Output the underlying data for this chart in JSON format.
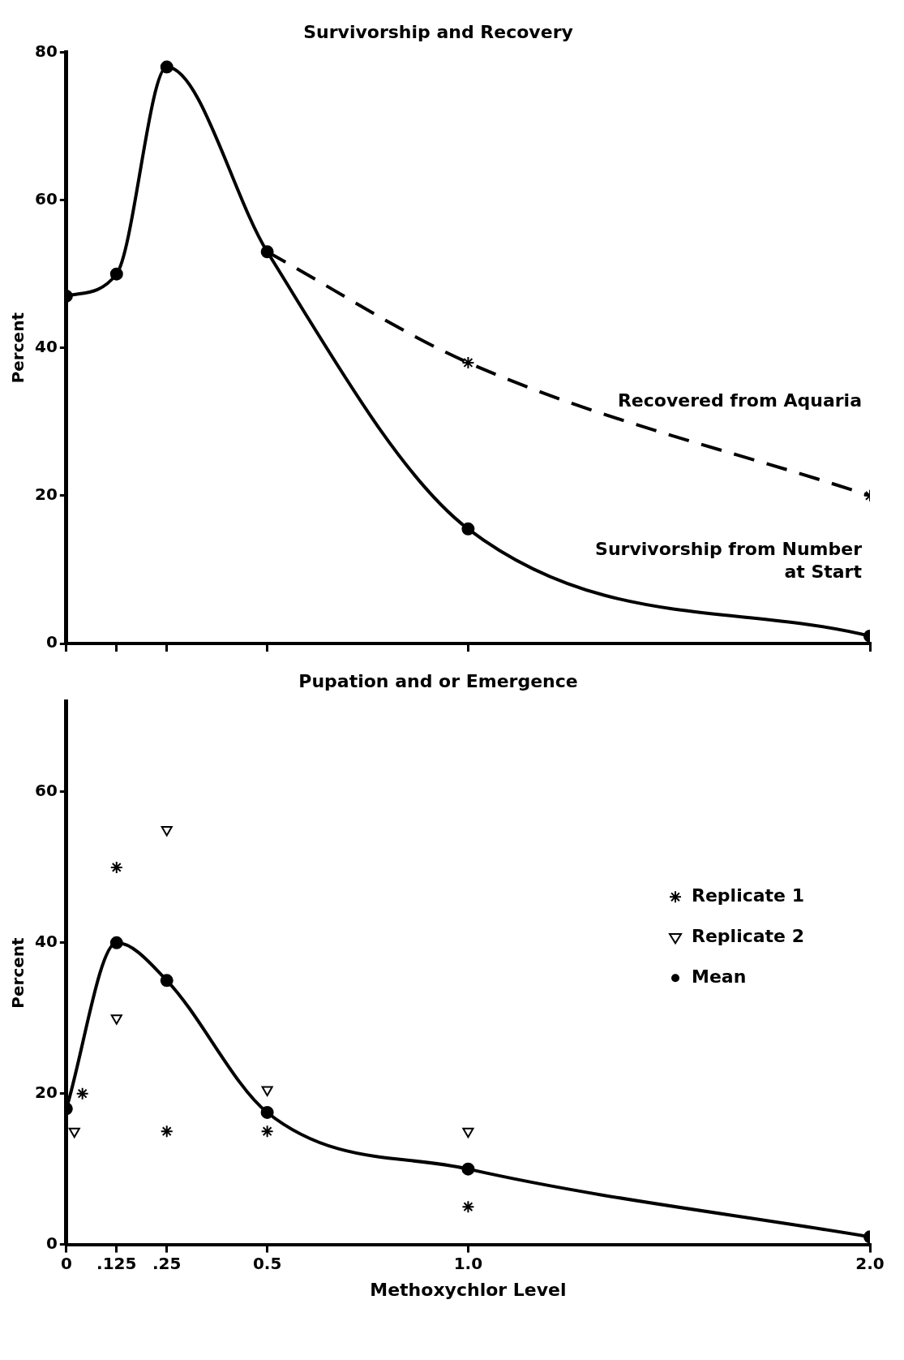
{
  "chart_data": [
    {
      "type": "line",
      "title": "Survivorship and Recovery",
      "ylabel": "Percent",
      "xlim": [
        0,
        2.0
      ],
      "xticks": [
        {
          "value": 0,
          "label": null
        },
        {
          "value": 0.125,
          "label": null
        },
        {
          "value": 0.25,
          "label": null
        },
        {
          "value": 0.5,
          "label": null
        },
        {
          "value": 1.0,
          "label": null
        },
        {
          "value": 2.0,
          "label": null
        }
      ],
      "ylim": [
        0,
        80
      ],
      "yticks": [
        0,
        20,
        40,
        60,
        80
      ],
      "grid": false,
      "legend": false,
      "tick_labels": "y",
      "series": [
        {
          "name": "Survivorship from Number at Start",
          "color": "#000000",
          "marker": "circle",
          "line_style": "solid",
          "x": [
            0,
            0.125,
            0.25,
            0.5,
            1.0,
            2.0
          ],
          "values": [
            47,
            50,
            78,
            53,
            15.5,
            1
          ]
        },
        {
          "name": "Recovered from Aquaria",
          "color": "#000000",
          "marker": "cross",
          "line_style": "dashed",
          "x": [
            0.5,
            1.0,
            2.0
          ],
          "values": [
            53,
            38,
            20
          ]
        }
      ]
    },
    {
      "type": "line",
      "title": "Pupation and or Emergence",
      "xlabel": "Methoxychlor Level",
      "ylabel": "Percent",
      "xlim": [
        0,
        2.0
      ],
      "xticks": [
        0,
        {
          "value": 0.125,
          "label": ".125"
        },
        {
          "value": 0.25,
          "label": ".25"
        },
        0.5,
        {
          "value": 1.0,
          "label": "1.0"
        },
        {
          "value": 2.0,
          "label": "2.0"
        }
      ],
      "ylim": [
        0,
        72
      ],
      "yticks": [
        0,
        20,
        40,
        60
      ],
      "grid": false,
      "legend": "right",
      "series": [
        {
          "name": "Replicate 1",
          "color": "#000000",
          "type": "scatter",
          "marker": "cross",
          "x": [
            0.04,
            0.125,
            0.25,
            0.5,
            1.0
          ],
          "values": [
            20,
            50,
            15,
            15,
            5
          ]
        },
        {
          "name": "Replicate 2",
          "color": "#000000",
          "type": "scatter",
          "marker": "triangle",
          "x": [
            0.02,
            0.125,
            0.25,
            0.5,
            1.0
          ],
          "values": [
            15,
            30,
            55,
            20.5,
            15
          ]
        },
        {
          "name": "Mean",
          "color": "#000000",
          "marker": "circle",
          "line_style": "solid",
          "x": [
            0,
            0.125,
            0.25,
            0.5,
            1.0,
            2.0
          ],
          "values": [
            18,
            40,
            35,
            17.5,
            10,
            1
          ]
        }
      ]
    }
  ]
}
